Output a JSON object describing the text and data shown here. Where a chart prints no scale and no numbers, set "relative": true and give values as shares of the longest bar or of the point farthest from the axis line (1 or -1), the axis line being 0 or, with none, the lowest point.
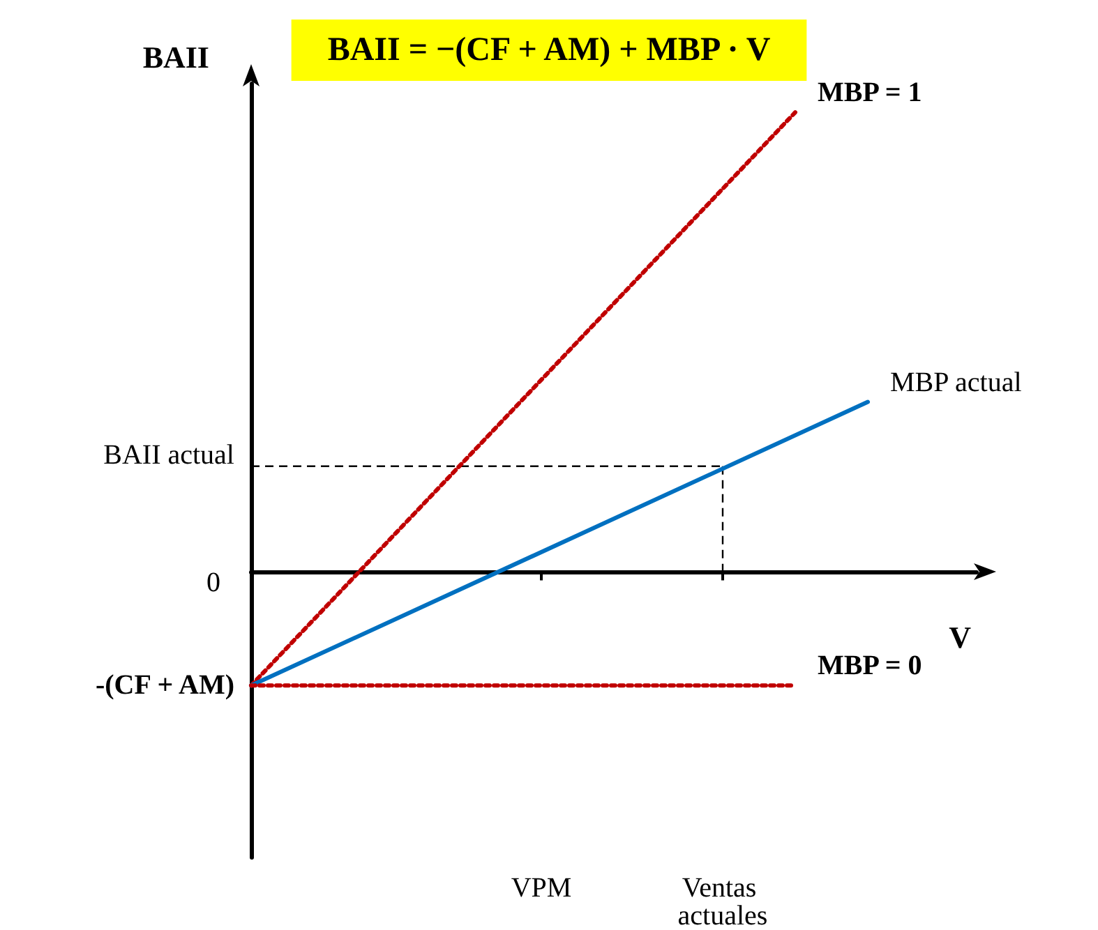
{
  "chart_data": {
    "type": "line",
    "title": "BAII = −(CF + AM) + MBP · V",
    "xlabel": "V",
    "ylabel": "BAII",
    "relative": true,
    "grid": false,
    "legend": false,
    "marker": "none",
    "categories": [
      null,
      null,
      null,
      null,
      null,
      null,
      null,
      null,
      "VPM",
      null,
      null,
      null,
      null,
      "Ventas actuales",
      null,
      null,
      null,
      null,
      null,
      null,
      null
    ],
    "series": [
      {
        "name": "MBP = 1",
        "color": "#c00000",
        "line_style": "dotted",
        "values": [
          -0.247,
          null,
          null,
          null,
          null,
          null,
          null,
          null,
          null,
          null,
          null,
          null,
          null,
          null,
          null,
          1,
          null,
          null,
          null,
          null,
          null
        ]
      },
      {
        "name": "MBP actual",
        "color": "#0070c0",
        "line_style": "solid",
        "values": [
          -0.247,
          null,
          null,
          null,
          null,
          null,
          null,
          null,
          null,
          null,
          null,
          null,
          null,
          null,
          null,
          null,
          null,
          0.37,
          null,
          null,
          null
        ]
      },
      {
        "name": "MBP = 0",
        "color": "#c00000",
        "line_style": "dotted",
        "values": [
          -0.247,
          null,
          null,
          null,
          null,
          null,
          null,
          null,
          null,
          null,
          null,
          null,
          null,
          null,
          null,
          -0.247,
          null,
          null,
          null,
          null,
          null
        ]
      }
    ],
    "ref_lines": [
      {
        "axis": "y",
        "value": 0.23,
        "label": "BAII actual",
        "color": "#000000",
        "line_style": "dashed"
      },
      {
        "axis": "x",
        "value": "Ventas actuales",
        "label": null,
        "color": "#000000",
        "line_style": "dashed"
      }
    ],
    "annotations": [
      "0",
      "-(CF + AM)"
    ]
  }
}
